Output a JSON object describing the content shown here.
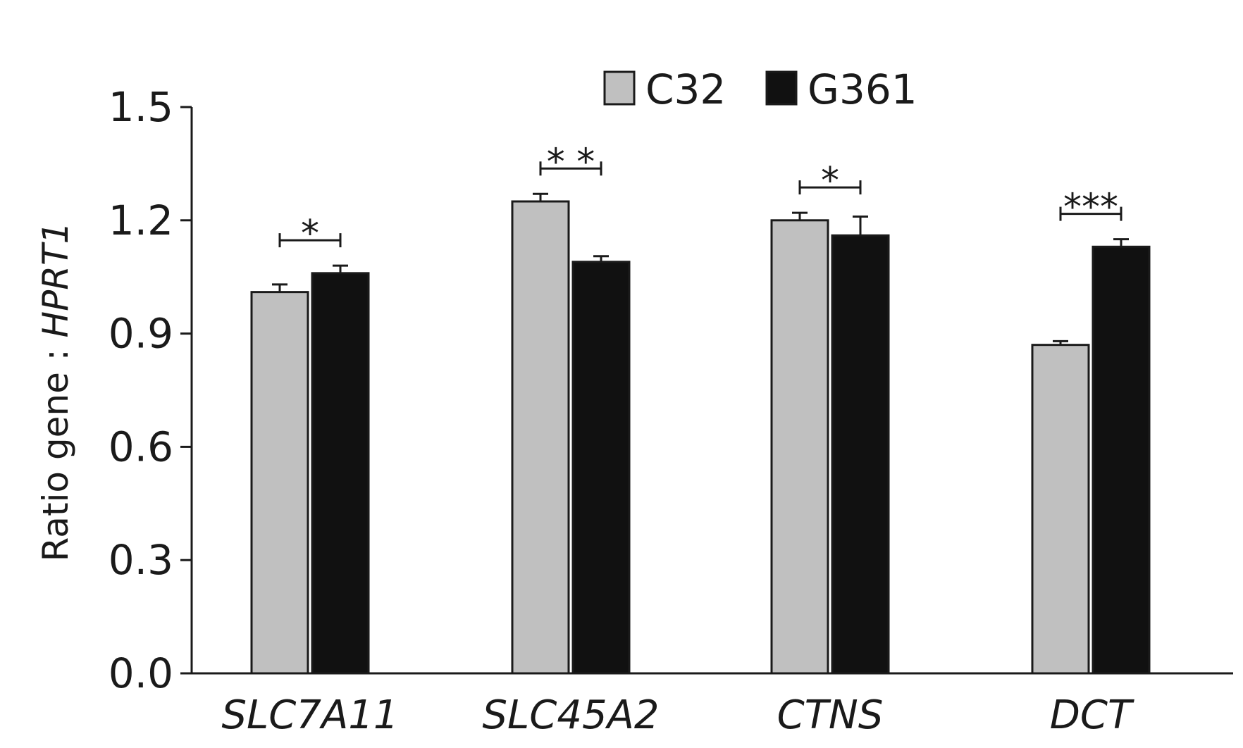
{
  "chart_data": {
    "type": "bar",
    "categories": [
      "SLC7A11",
      "SLC45A2",
      "CTNS",
      "DCT"
    ],
    "series": [
      {
        "name": "C32",
        "color": "#c0c0c0",
        "values": [
          1.01,
          1.25,
          1.2,
          0.87
        ],
        "errors": [
          0.02,
          0.02,
          0.02,
          0.01
        ]
      },
      {
        "name": "G361",
        "color": "#111111",
        "values": [
          1.06,
          1.09,
          1.16,
          1.13
        ],
        "errors": [
          0.02,
          0.015,
          0.05,
          0.02
        ]
      }
    ],
    "significance": [
      "*",
      "* *",
      "*",
      "***"
    ],
    "ylabel_prefix": "Ratio gene : ",
    "ylabel_italic": "HPRT1",
    "ylim": [
      0,
      1.5
    ],
    "yticks": [
      "0.0",
      "0.3",
      "0.6",
      "0.9",
      "1.2",
      "1.5"
    ],
    "legend_position": "top"
  }
}
